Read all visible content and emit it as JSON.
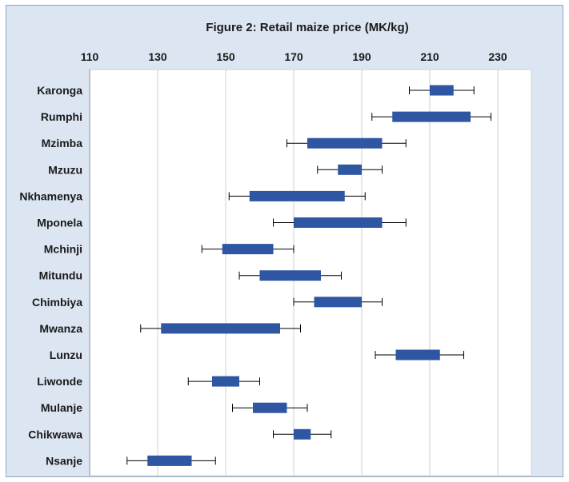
{
  "chart_data": {
    "type": "box",
    "title": "Figure 2: Retail maize price (MK/kg)",
    "xlabel": "",
    "ylabel": "",
    "xlim": [
      110,
      240
    ],
    "xticks": [
      110,
      130,
      150,
      170,
      190,
      210,
      230
    ],
    "grid": true,
    "orientation": "horizontal",
    "color": "#2e56a3",
    "categories": [
      "Karonga",
      "Rumphi",
      "Mzimba",
      "Mzuzu",
      "Nkhamenya",
      "Mponela",
      "Mchinji",
      "Mitundu",
      "Chimbiya",
      "Mwanza",
      "Lunzu",
      "Liwonde",
      "Mulanje",
      "Chikwawa",
      "Nsanje"
    ],
    "series": [
      {
        "whisker_low": 204,
        "box_low": 210,
        "box_high": 217,
        "whisker_high": 223
      },
      {
        "whisker_low": 193,
        "box_low": 199,
        "box_high": 222,
        "whisker_high": 228
      },
      {
        "whisker_low": 168,
        "box_low": 174,
        "box_high": 196,
        "whisker_high": 203
      },
      {
        "whisker_low": 177,
        "box_low": 183,
        "box_high": 190,
        "whisker_high": 196
      },
      {
        "whisker_low": 151,
        "box_low": 157,
        "box_high": 185,
        "whisker_high": 191
      },
      {
        "whisker_low": 164,
        "box_low": 170,
        "box_high": 196,
        "whisker_high": 203
      },
      {
        "whisker_low": 143,
        "box_low": 149,
        "box_high": 164,
        "whisker_high": 170
      },
      {
        "whisker_low": 154,
        "box_low": 160,
        "box_high": 178,
        "whisker_high": 184
      },
      {
        "whisker_low": 170,
        "box_low": 176,
        "box_high": 190,
        "whisker_high": 196
      },
      {
        "whisker_low": 125,
        "box_low": 131,
        "box_high": 166,
        "whisker_high": 172
      },
      {
        "whisker_low": 194,
        "box_low": 200,
        "box_high": 213,
        "whisker_high": 220
      },
      {
        "whisker_low": 139,
        "box_low": 146,
        "box_high": 154,
        "whisker_high": 160
      },
      {
        "whisker_low": 152,
        "box_low": 158,
        "box_high": 168,
        "whisker_high": 174
      },
      {
        "whisker_low": 164,
        "box_low": 170,
        "box_high": 175,
        "whisker_high": 181
      },
      {
        "whisker_low": 121,
        "box_low": 127,
        "box_high": 140,
        "whisker_high": 147
      }
    ]
  }
}
